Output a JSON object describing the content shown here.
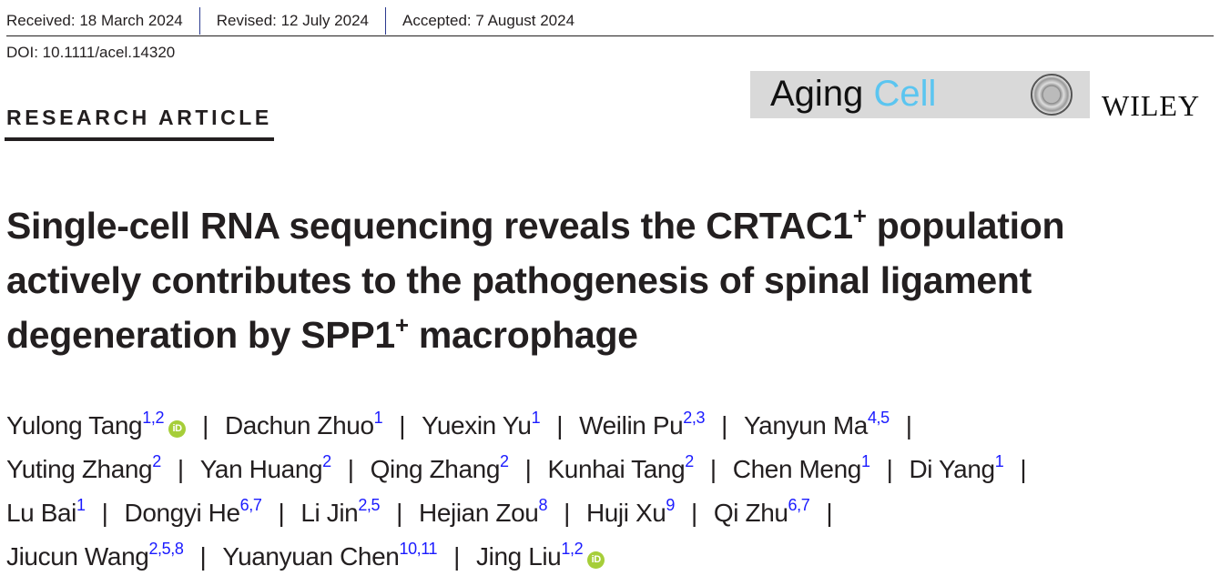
{
  "header": {
    "dates": [
      "Received: 18 March 2024",
      "Revised: 12 July 2024",
      "Accepted: 7 August 2024"
    ],
    "doi": "DOI: 10.1111/acel.14320",
    "article_type": "RESEARCH ARTICLE"
  },
  "journal": {
    "name_part1": "Aging",
    "name_part2": "Cell",
    "publisher": "WILEY",
    "accent_color": "#5bc5f0"
  },
  "title": {
    "line1": "Single-cell RNA sequencing reveals the CRTAC1",
    "sup1": "+",
    "line1b": " population",
    "line2": "actively contributes to the pathogenesis of spinal ligament",
    "line3": "degeneration by SPP1",
    "sup2": "+",
    "line3b": " macrophage"
  },
  "separator": "|",
  "author_lines": [
    [
      {
        "name": "Yulong Tang",
        "sup": "1,2",
        "orcid": true
      },
      {
        "name": "Dachun Zhuo",
        "sup": "1"
      },
      {
        "name": "Yuexin Yu",
        "sup": "1"
      },
      {
        "name": "Weilin Pu",
        "sup": "2,3"
      },
      {
        "name": "Yanyun Ma",
        "sup": "4,5"
      }
    ],
    [
      {
        "name": "Yuting Zhang",
        "sup": "2"
      },
      {
        "name": "Yan Huang",
        "sup": "2"
      },
      {
        "name": "Qing Zhang",
        "sup": "2"
      },
      {
        "name": "Kunhai Tang",
        "sup": "2"
      },
      {
        "name": "Chen Meng",
        "sup": "1"
      },
      {
        "name": "Di Yang",
        "sup": "1"
      }
    ],
    [
      {
        "name": "Lu Bai",
        "sup": "1"
      },
      {
        "name": "Dongyi He",
        "sup": "6,7"
      },
      {
        "name": "Li Jin",
        "sup": "2,5"
      },
      {
        "name": "Hejian Zou",
        "sup": "8"
      },
      {
        "name": "Huji Xu",
        "sup": "9"
      },
      {
        "name": "Qi Zhu",
        "sup": "6,7"
      }
    ],
    [
      {
        "name": "Jiucun Wang",
        "sup": "2,5,8"
      },
      {
        "name": "Yuanyuan Chen",
        "sup": "10,11"
      },
      {
        "name": "Jing Liu",
        "sup": "1,2",
        "orcid": true
      }
    ]
  ],
  "orcid_icon": "orcid-icon",
  "orcid_label": "iD"
}
